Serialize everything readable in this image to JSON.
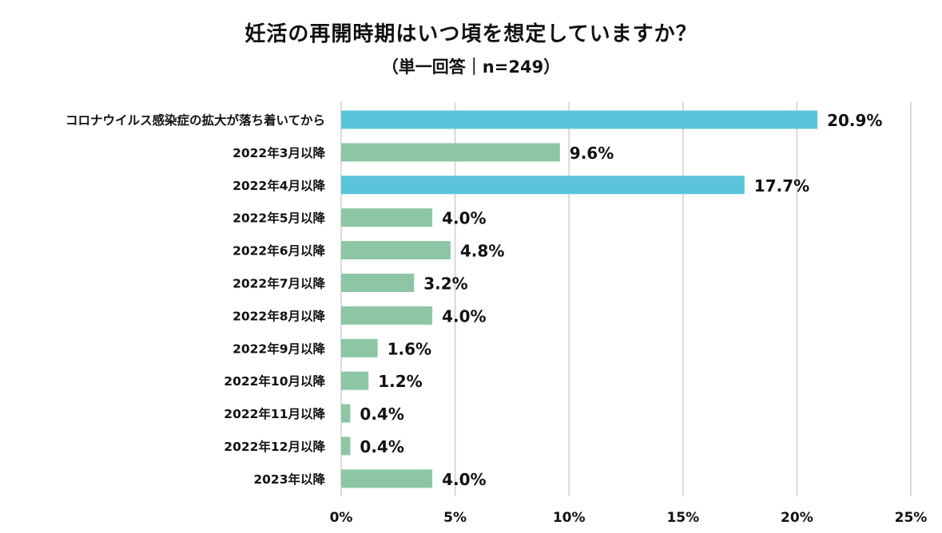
{
  "chart_data": {
    "type": "bar",
    "orientation": "horizontal",
    "title": "妊活の再開時期はいつ頃を想定していますか？",
    "subtitle": "（単一回答｜n=249）",
    "categories": [
      "コロナウイルス感染症の拡大が落ち着いてから",
      "2022年3月以降",
      "2022年4月以降",
      "2022年5月以降",
      "2022年6月以降",
      "2022年7月以降",
      "2022年8月以降",
      "2022年9月以降",
      "2022年10月以降",
      "2022年11月以降",
      "2022年12月以降",
      "2023年以降"
    ],
    "values": [
      20.9,
      9.6,
      17.7,
      4.0,
      4.8,
      3.2,
      4.0,
      1.6,
      1.2,
      0.4,
      0.4,
      4.0
    ],
    "value_labels": [
      "20.9%",
      "9.6%",
      "17.7%",
      "4.0%",
      "4.8%",
      "3.2%",
      "4.0%",
      "1.6%",
      "1.2%",
      "0.4%",
      "0.4%",
      "4.0%"
    ],
    "highlighted": [
      true,
      false,
      true,
      false,
      false,
      false,
      false,
      false,
      false,
      false,
      false,
      false
    ],
    "xlim": [
      0,
      25
    ],
    "xticks": [
      0,
      5,
      10,
      15,
      20,
      25
    ],
    "xtick_labels": [
      "0%",
      "5%",
      "10%",
      "15%",
      "20%",
      "25%"
    ],
    "grid": "vertical",
    "legend": "none",
    "colors": {
      "highlight": "#5bc4da",
      "default": "#8cc6a5",
      "grid": "#d0d0d0"
    }
  }
}
